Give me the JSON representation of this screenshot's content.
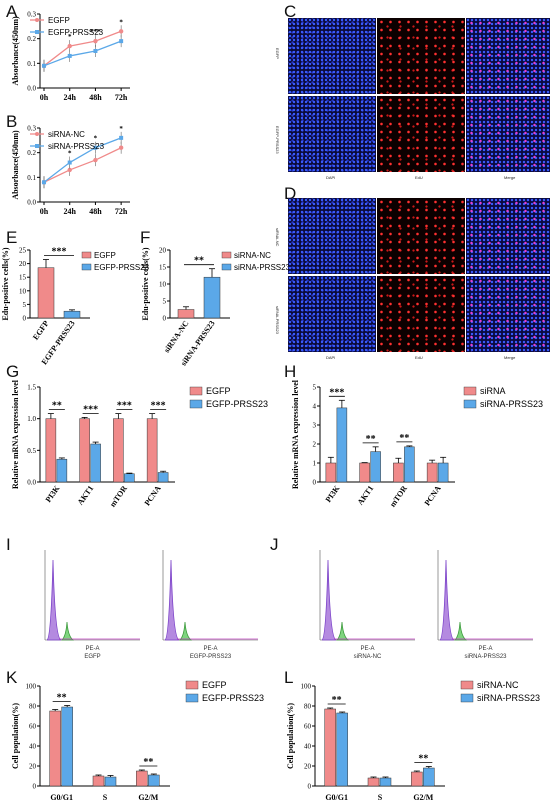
{
  "panels": {
    "A": "A",
    "B": "B",
    "C": "C",
    "D": "D",
    "E": "E",
    "F": "F",
    "G": "G",
    "H": "H",
    "I": "I",
    "J": "J",
    "K": "K",
    "L": "L"
  },
  "colors": {
    "red": "#f08a8a",
    "blue": "#5ba8e8",
    "red_dark": "#e05a5a",
    "blue_dark": "#3b88d6"
  },
  "microscopy": {
    "C": {
      "rows": [
        "EGFP",
        "EGFP-PRSS23"
      ],
      "cols": [
        "DAPI",
        "EdU",
        "Merge"
      ]
    },
    "D": {
      "rows": [
        "siRNA-NC",
        "siRNA-PRSS23"
      ],
      "cols": [
        "DAPI",
        "EdU",
        "Merge"
      ]
    }
  },
  "flow": {
    "I": [
      {
        "xlabel": "PE-A",
        "name": "EGFP"
      },
      {
        "xlabel": "PE-A",
        "name": "EGFP-PRSS23"
      }
    ],
    "J": [
      {
        "xlabel": "PE-A",
        "name": "siRNA-NC"
      },
      {
        "xlabel": "PE-A",
        "name": "siRNA-PRSS23"
      }
    ]
  },
  "chart_data": [
    {
      "id": "A",
      "type": "line",
      "x": [
        "0h",
        "24h",
        "48h",
        "72h"
      ],
      "ylabel": "Absorbance(450nm)",
      "ylim": [
        0,
        0.3
      ],
      "yticks": [
        "0.0",
        "0.1",
        "0.2",
        "0.3"
      ],
      "series": [
        {
          "name": "EGFP",
          "values": [
            0.09,
            0.17,
            0.19,
            0.23
          ]
        },
        {
          "name": "EGFP-PRSS23",
          "values": [
            0.09,
            0.13,
            0.15,
            0.19
          ]
        }
      ],
      "annotations": [
        "*",
        "***",
        "*"
      ]
    },
    {
      "id": "B",
      "type": "line",
      "x": [
        "0h",
        "24h",
        "48h",
        "72h"
      ],
      "ylabel": "Absorbance(450nm)",
      "ylim": [
        0,
        0.3
      ],
      "yticks": [
        "0.0",
        "0.1",
        "0.2",
        "0.3"
      ],
      "series": [
        {
          "name": "siRNA-NC",
          "values": [
            0.08,
            0.13,
            0.17,
            0.22
          ]
        },
        {
          "name": "siRNA-PRSS23",
          "values": [
            0.08,
            0.16,
            0.22,
            0.26
          ]
        }
      ],
      "annotations": [
        "*",
        "*",
        "*"
      ]
    },
    {
      "id": "E",
      "type": "bar",
      "categories": [
        "EGFP",
        "EGFP-PRSS23"
      ],
      "values": [
        18.5,
        2.5
      ],
      "errors": [
        3,
        0.5
      ],
      "ylabel": "Edu-positive cells(%)",
      "ylim": [
        0,
        25
      ],
      "yticks": [
        "0",
        "5",
        "10",
        "15",
        "20",
        "25"
      ],
      "legend": [
        "EGFP",
        "EGFP-PRSS23"
      ],
      "significance": "***"
    },
    {
      "id": "F",
      "type": "bar",
      "categories": [
        "siRNA-NC",
        "siRNA-PRSS23"
      ],
      "values": [
        2.5,
        12
      ],
      "errors": [
        0.8,
        2.5
      ],
      "ylabel": "Edu-positive cells(%)",
      "ylim": [
        0,
        20
      ],
      "yticks": [
        "0",
        "5",
        "10",
        "15",
        "20"
      ],
      "legend": [
        "siRNA-NC",
        "siRNA-PRSS23"
      ],
      "significance": "**"
    },
    {
      "id": "G",
      "type": "bar",
      "categories": [
        "PI3K",
        "AKT1",
        "mTOR",
        "PCNA"
      ],
      "series": [
        {
          "name": "EGFP",
          "values": [
            1.0,
            1.0,
            1.0,
            1.0
          ],
          "errors": [
            0.08,
            0.02,
            0.08,
            0.08
          ]
        },
        {
          "name": "EGFP-PRSS23",
          "values": [
            0.36,
            0.6,
            0.13,
            0.15
          ],
          "errors": [
            0.02,
            0.03,
            0.01,
            0.02
          ]
        }
      ],
      "ylabel": "Relative mRNA expression level",
      "ylim": [
        0,
        1.5
      ],
      "yticks": [
        "0.0",
        "0.5",
        "1.0",
        "1.5"
      ],
      "significance": [
        "**",
        "***",
        "***",
        "***"
      ]
    },
    {
      "id": "H",
      "type": "bar",
      "categories": [
        "PI3K",
        "AKT1",
        "mTOR",
        "PCNA"
      ],
      "series": [
        {
          "name": "siRNA",
          "values": [
            1.0,
            1.0,
            1.0,
            1.0
          ],
          "errors": [
            0.3,
            0.02,
            0.25,
            0.15
          ]
        },
        {
          "name": "siRNA-PRSS23",
          "values": [
            3.9,
            1.6,
            1.85,
            1.0
          ],
          "errors": [
            0.4,
            0.25,
            0.05,
            0.3
          ]
        }
      ],
      "ylabel": "Relative mRNA expression level",
      "ylim": [
        0,
        5
      ],
      "yticks": [
        "0",
        "1",
        "2",
        "3",
        "4",
        "5"
      ],
      "significance": [
        "***",
        "**",
        "**",
        ""
      ]
    },
    {
      "id": "K",
      "type": "bar",
      "categories": [
        "G0/G1",
        "S",
        "G2/M"
      ],
      "series": [
        {
          "name": "EGFP",
          "values": [
            75,
            10,
            15
          ],
          "errors": [
            1.5,
            1,
            1
          ]
        },
        {
          "name": "EGFP-PRSS23",
          "values": [
            79,
            9,
            11
          ],
          "errors": [
            1.5,
            1.5,
            1
          ]
        }
      ],
      "ylabel": "Cell population(%)",
      "ylim": [
        0,
        100
      ],
      "yticks": [
        "0",
        "20",
        "40",
        "60",
        "80",
        "100"
      ],
      "significance": [
        "**",
        "",
        "**"
      ]
    },
    {
      "id": "L",
      "type": "bar",
      "categories": [
        "G0/G1",
        "S",
        "G2/M"
      ],
      "series": [
        {
          "name": "siRNA-NC",
          "values": [
            77,
            8,
            14
          ],
          "errors": [
            1,
            1,
            1
          ]
        },
        {
          "name": "siRNA-PRSS23",
          "values": [
            73,
            8,
            18
          ],
          "errors": [
            1,
            1,
            1.5
          ]
        }
      ],
      "ylabel": "Cell population(%)",
      "ylim": [
        0,
        100
      ],
      "yticks": [
        "0",
        "20",
        "40",
        "60",
        "80",
        "100"
      ],
      "significance": [
        "**",
        "",
        "**"
      ]
    }
  ]
}
